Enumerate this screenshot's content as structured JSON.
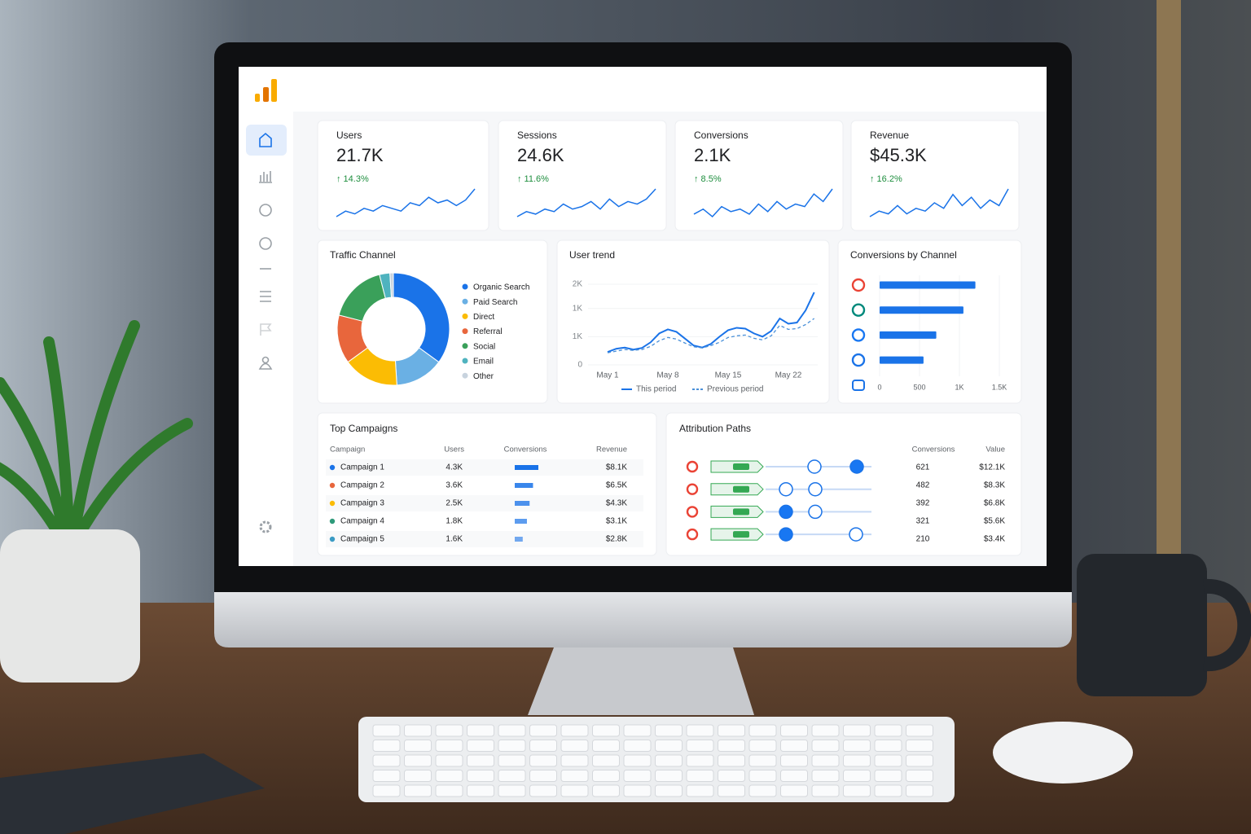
{
  "kpis": [
    {
      "label": "Users",
      "value": "21.7K",
      "change": "↑ 14.3%",
      "sparkline": [
        3,
        5,
        4,
        6,
        5,
        7,
        6,
        5,
        8,
        7,
        10,
        8,
        9,
        7,
        9,
        13
      ]
    },
    {
      "label": "Sessions",
      "value": "24.6K",
      "change": "↑ 11.6%",
      "sparkline": [
        3,
        5,
        4,
        6,
        5,
        8,
        6,
        7,
        9,
        6,
        10,
        7,
        9,
        8,
        10,
        14
      ]
    },
    {
      "label": "Conversions",
      "value": "2.1K",
      "change": "↑ 8.5%",
      "sparkline": [
        4,
        6,
        3,
        7,
        5,
        6,
        4,
        8,
        5,
        9,
        6,
        8,
        7,
        12,
        9,
        14
      ]
    },
    {
      "label": "Revenue",
      "value": "$45.3K",
      "change": "↑ 16.2%",
      "sparkline": [
        3,
        5,
        4,
        7,
        4,
        6,
        5,
        8,
        6,
        11,
        7,
        10,
        6,
        9,
        7,
        13
      ]
    }
  ],
  "traffic_channel": {
    "type": "pie",
    "title": "Traffic Channel",
    "categories": [
      "Organic Search",
      "Paid Search",
      "Direct",
      "Referral",
      "Social",
      "Email",
      "Other"
    ],
    "values": [
      35,
      14,
      16,
      14,
      17,
      3,
      1
    ],
    "colors": [
      "#1a73e8",
      "#6ab0e4",
      "#fbbc04",
      "#e8663c",
      "#3aa05a",
      "#4fb3bf",
      "#c8d3de"
    ]
  },
  "user_trend": {
    "type": "line",
    "title": "User trend",
    "x": [
      "May 1",
      null,
      null,
      null,
      null,
      null,
      null,
      "May 8",
      null,
      null,
      null,
      null,
      null,
      null,
      "May 15",
      null,
      null,
      null,
      null,
      null,
      null,
      "May 22",
      null,
      null,
      null
    ],
    "series": [
      {
        "name": "This period",
        "color": "#1a73e8",
        "dashed": false,
        "values": [
          320,
          400,
          430,
          380,
          420,
          560,
          780,
          880,
          820,
          650,
          480,
          430,
          520,
          700,
          860,
          920,
          900,
          780,
          700,
          840,
          1150,
          1020,
          1050,
          1350,
          1800
        ]
      },
      {
        "name": "Previous period",
        "color": "#4a90d9",
        "dashed": true,
        "values": [
          300,
          340,
          380,
          360,
          380,
          460,
          600,
          680,
          640,
          540,
          450,
          420,
          480,
          560,
          680,
          720,
          740,
          660,
          620,
          720,
          980,
          880,
          900,
          1000,
          1150
        ]
      }
    ],
    "ylim": [
      0,
      2000
    ],
    "yticks": [
      0,
      {
        "value": 700,
        "label": "1K"
      },
      {
        "value": 1400,
        "label": "1K"
      },
      {
        "value": 2000,
        "label": "2K"
      }
    ]
  },
  "conversions_by_channel": {
    "type": "bar",
    "title": "Conversions by Channel",
    "categories": [
      null,
      null,
      null,
      null
    ],
    "values": [
      1200,
      1050,
      710,
      550
    ],
    "color": "#1a73e8",
    "xlim": [
      0,
      1500
    ],
    "xticks": [
      0,
      500,
      {
        "value": 1000,
        "label": "1K"
      },
      {
        "value": 1500,
        "label": "1.5K"
      }
    ],
    "grid": true
  },
  "top_campaigns": {
    "title": "Top Campaigns",
    "columns": [
      "Campaign",
      "Users",
      "Conversions",
      "Revenue"
    ],
    "rows": [
      {
        "name": "Campaign 1",
        "color": "#1a73e8",
        "users": "4.3K",
        "conversions": 620,
        "revenue": "$8.1K"
      },
      {
        "name": "Campaign 2",
        "color": "#e8663c",
        "users": "3.6K",
        "conversions": 480,
        "revenue": "$6.5K"
      },
      {
        "name": "Campaign 3",
        "color": "#fbbc04",
        "users": "2.5K",
        "conversions": 390,
        "revenue": "$4.3K"
      },
      {
        "name": "Campaign 4",
        "color": "#2e9a7a",
        "users": "1.8K",
        "conversions": 320,
        "revenue": "$3.1K"
      },
      {
        "name": "Campaign 5",
        "color": "#3a9bc4",
        "users": "1.6K",
        "conversions": 210,
        "revenue": "$2.8K"
      }
    ]
  },
  "attribution_paths": {
    "title": "Attribution Paths",
    "columns": [
      "Conversions",
      "Value"
    ],
    "rows": [
      {
        "conversions": "621",
        "value": "$12.1K"
      },
      {
        "conversions": "482",
        "value": "$8.3K"
      },
      {
        "conversions": "392",
        "value": "$6.8K"
      },
      {
        "conversions": "321",
        "value": "$5.6K"
      },
      {
        "conversions": "210",
        "value": "$3.4K"
      }
    ]
  }
}
